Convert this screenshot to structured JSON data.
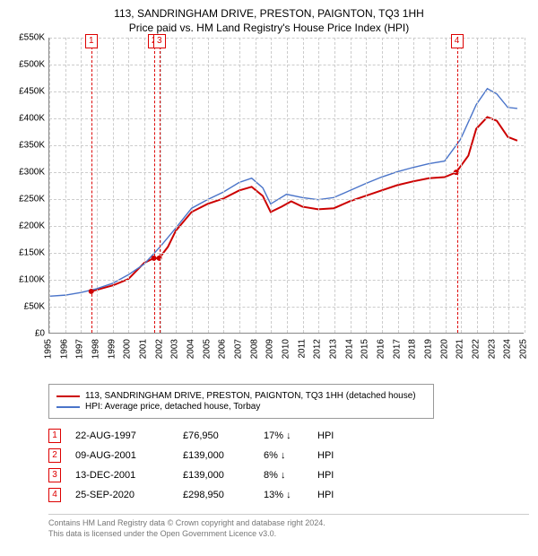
{
  "title": {
    "main": "113, SANDRINGHAM DRIVE, PRESTON, PAIGNTON, TQ3 1HH",
    "sub": "Price paid vs. HM Land Registry's House Price Index (HPI)"
  },
  "chart": {
    "type": "line",
    "background_color": "#ffffff",
    "grid_color": "#cccccc",
    "axis_color": "#888888",
    "event_line_color": "#d00",
    "title_fontsize": 12,
    "tick_fontsize": 10,
    "ylim": [
      0,
      550000
    ],
    "ytick_step": 50000,
    "yticks": [
      "£0",
      "£50K",
      "£100K",
      "£150K",
      "£200K",
      "£250K",
      "£300K",
      "£350K",
      "£400K",
      "£450K",
      "£500K",
      "£550K"
    ],
    "xlim": [
      1995,
      2025
    ],
    "xticks": [
      1995,
      1996,
      1997,
      1998,
      1999,
      2000,
      2001,
      2002,
      2003,
      2004,
      2005,
      2006,
      2007,
      2008,
      2009,
      2010,
      2011,
      2012,
      2013,
      2014,
      2015,
      2016,
      2017,
      2018,
      2019,
      2020,
      2021,
      2022,
      2023,
      2024,
      2025
    ],
    "series": [
      {
        "name": "113, SANDRINGHAM DRIVE, PRESTON, PAIGNTON, TQ3 1HH (detached house)",
        "color": "#cc0000",
        "line_width": 2,
        "data": [
          [
            1997.65,
            76950
          ],
          [
            1998,
            80000
          ],
          [
            1999,
            88000
          ],
          [
            2000,
            100000
          ],
          [
            2001,
            130000
          ],
          [
            2001.61,
            139000
          ],
          [
            2001.95,
            139000
          ],
          [
            2002.5,
            160000
          ],
          [
            2003,
            190000
          ],
          [
            2004,
            225000
          ],
          [
            2005,
            240000
          ],
          [
            2006,
            250000
          ],
          [
            2007,
            265000
          ],
          [
            2007.8,
            272000
          ],
          [
            2008.5,
            255000
          ],
          [
            2009,
            225000
          ],
          [
            2009.7,
            235000
          ],
          [
            2010.3,
            245000
          ],
          [
            2011,
            235000
          ],
          [
            2012,
            230000
          ],
          [
            2013,
            232000
          ],
          [
            2014,
            245000
          ],
          [
            2015,
            255000
          ],
          [
            2016,
            265000
          ],
          [
            2017,
            275000
          ],
          [
            2018,
            282000
          ],
          [
            2019,
            288000
          ],
          [
            2020,
            290000
          ],
          [
            2020.73,
            298950
          ],
          [
            2021.5,
            330000
          ],
          [
            2022,
            380000
          ],
          [
            2022.7,
            402000
          ],
          [
            2023.3,
            395000
          ],
          [
            2024,
            365000
          ],
          [
            2024.6,
            358000
          ]
        ]
      },
      {
        "name": "HPI: Average price, detached house, Torbay",
        "color": "#4a74c9",
        "line_width": 1.4,
        "data": [
          [
            1995,
            68000
          ],
          [
            1996,
            70000
          ],
          [
            1997,
            75000
          ],
          [
            1998,
            82000
          ],
          [
            1999,
            92000
          ],
          [
            2000,
            108000
          ],
          [
            2001,
            128000
          ],
          [
            2002,
            160000
          ],
          [
            2003,
            195000
          ],
          [
            2004,
            232000
          ],
          [
            2005,
            248000
          ],
          [
            2006,
            262000
          ],
          [
            2007,
            280000
          ],
          [
            2007.8,
            288000
          ],
          [
            2008.5,
            270000
          ],
          [
            2009,
            240000
          ],
          [
            2010,
            258000
          ],
          [
            2011,
            252000
          ],
          [
            2012,
            248000
          ],
          [
            2013,
            252000
          ],
          [
            2014,
            265000
          ],
          [
            2015,
            278000
          ],
          [
            2016,
            290000
          ],
          [
            2017,
            300000
          ],
          [
            2018,
            308000
          ],
          [
            2019,
            315000
          ],
          [
            2020,
            320000
          ],
          [
            2021,
            360000
          ],
          [
            2022,
            425000
          ],
          [
            2022.7,
            455000
          ],
          [
            2023.3,
            445000
          ],
          [
            2024,
            420000
          ],
          [
            2024.6,
            418000
          ]
        ]
      }
    ],
    "sale_points": [
      [
        1997.65,
        76950
      ],
      [
        2001.61,
        139000
      ],
      [
        2001.95,
        139000
      ],
      [
        2020.73,
        298950
      ]
    ],
    "event_lines": [
      {
        "n": "1",
        "x": 1997.65,
        "marker_y": -4
      },
      {
        "n": "2",
        "x": 2001.61,
        "marker_y": -4
      },
      {
        "n": "3",
        "x": 2001.95,
        "marker_y": -4
      },
      {
        "n": "4",
        "x": 2020.73,
        "marker_y": -4
      }
    ]
  },
  "legend": {
    "items": [
      {
        "color": "#cc0000",
        "label": "113, SANDRINGHAM DRIVE, PRESTON, PAIGNTON, TQ3 1HH (detached house)"
      },
      {
        "color": "#4a74c9",
        "label": "HPI: Average price, detached house, Torbay"
      }
    ]
  },
  "events_table": {
    "rows": [
      {
        "n": "1",
        "date": "22-AUG-1997",
        "price": "£76,950",
        "delta": "17% ↓",
        "ref": "HPI"
      },
      {
        "n": "2",
        "date": "09-AUG-2001",
        "price": "£139,000",
        "delta": "6% ↓",
        "ref": "HPI"
      },
      {
        "n": "3",
        "date": "13-DEC-2001",
        "price": "£139,000",
        "delta": "8% ↓",
        "ref": "HPI"
      },
      {
        "n": "4",
        "date": "25-SEP-2020",
        "price": "£298,950",
        "delta": "13% ↓",
        "ref": "HPI"
      }
    ]
  },
  "footer": {
    "line1": "Contains HM Land Registry data © Crown copyright and database right 2024.",
    "line2": "This data is licensed under the Open Government Licence v3.0."
  }
}
